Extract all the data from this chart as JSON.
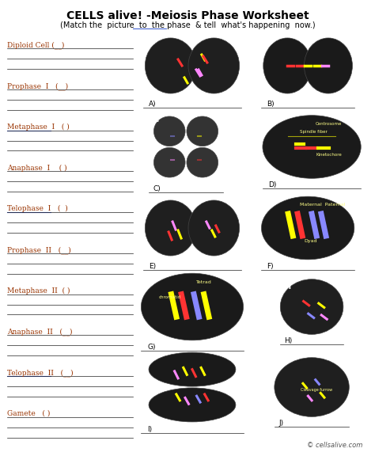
{
  "title": "CELLS alive! -Meiosis Phase Worksheet",
  "subtitle": "(Match the  picture  to  the phase  & tell  what's happening  now.)",
  "background_color": "#ffffff",
  "title_color": "#000000",
  "subtitle_color": "#000000",
  "label_color": "#993300",
  "underline_color": "#3355cc",
  "line_color": "#222222",
  "footer": "© cellsalive.com",
  "left_labels": [
    {
      "text": "Diploid Cell",
      "paren": "(__)",
      "underline": false,
      "lines_after": 2
    },
    {
      "text": "Prophase  I",
      "paren": "  (__)",
      "underline": false,
      "lines_after": 2
    },
    {
      "text": "Metaphase  I",
      "paren": "  ( )",
      "underline": true,
      "lines_after": 2
    },
    {
      "text": "Anaphase  I",
      "paren": "   ( )",
      "underline": false,
      "lines_after": 2
    },
    {
      "text": "Telophase  I",
      "paren": "  (  )",
      "underline": true,
      "lines_after": 2
    },
    {
      "text": "Prophase  II",
      "paren": "  (__)",
      "underline": false,
      "lines_after": 2
    },
    {
      "text": "Metaphase  II",
      "paren": " ( )",
      "underline": false,
      "lines_after": 2
    },
    {
      "text": "Anaphase  II",
      "paren": "  (__)",
      "underline": false,
      "lines_after": 2
    },
    {
      "text": "Telophase  II",
      "paren": "  (__)",
      "underline": true,
      "lines_after": 2
    },
    {
      "text": "Gamete",
      "paren": "  ( )",
      "underline": false,
      "lines_after": 2
    }
  ],
  "image_labels": [
    "A",
    "B",
    "C",
    "D",
    "E",
    "F",
    "G",
    "H",
    "I",
    "J"
  ]
}
